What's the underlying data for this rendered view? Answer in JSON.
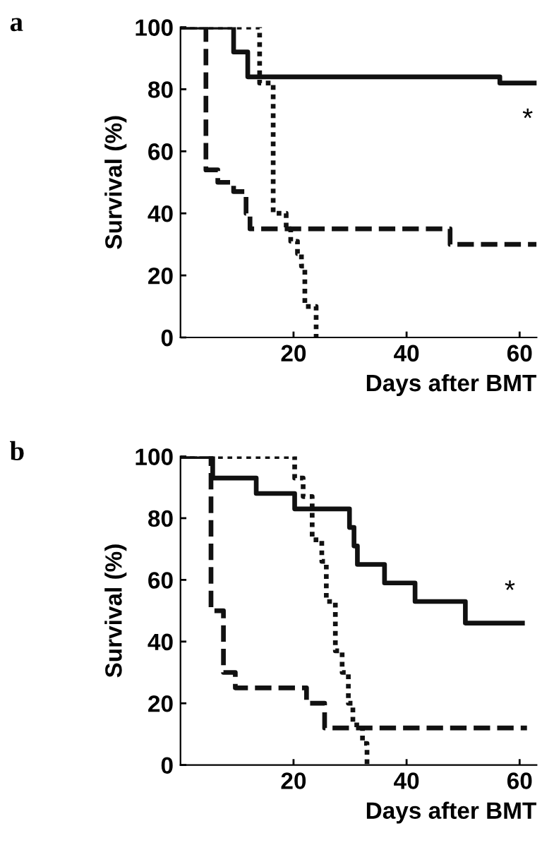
{
  "chart_data": [
    {
      "type": "step",
      "title": "a",
      "xlabel": "Days after BMT",
      "ylabel": "Survival (%)",
      "xlim": [
        0,
        63
      ],
      "xticks": [
        20,
        40,
        60
      ],
      "ylim": [
        0,
        100
      ],
      "yticks": [
        0,
        20,
        40,
        60,
        80,
        100
      ],
      "grid": false,
      "legend": false,
      "series": [
        {
          "color": "#111111",
          "line_style": "solid",
          "x": [
            0,
            9.4,
            11.9,
            56.5,
            63
          ],
          "values": [
            100,
            92,
            84,
            82,
            82
          ]
        },
        {
          "color": "#111111",
          "line_style": "dashed",
          "x": [
            0,
            4.5,
            6.6,
            9.4,
            11.6,
            12.3,
            47.7,
            63
          ],
          "values": [
            100,
            54,
            50,
            47,
            40,
            35,
            30,
            30
          ]
        },
        {
          "color": "#111111",
          "line_style": "dotted",
          "x": [
            0,
            14,
            16.4,
            18.7,
            19.5,
            20.7,
            21.4,
            22,
            24
          ],
          "values": [
            100,
            82,
            40,
            35,
            31,
            27,
            23,
            10,
            0
          ]
        }
      ],
      "annotations": [
        "*"
      ]
    },
    {
      "type": "step",
      "title": "b",
      "xlabel": "Days after BMT",
      "ylabel": "Survival (%)",
      "xlim": [
        0,
        63
      ],
      "xticks": [
        20,
        40,
        60
      ],
      "ylim": [
        0,
        100
      ],
      "yticks": [
        0,
        20,
        40,
        60,
        80,
        100
      ],
      "grid": false,
      "legend": false,
      "series": [
        {
          "color": "#111111",
          "line_style": "solid",
          "x": [
            0,
            5.7,
            13.4,
            20.2,
            29.9,
            30.7,
            31.3,
            36.1,
            41.5,
            50.4,
            60.5
          ],
          "values": [
            100,
            93,
            88,
            83,
            77,
            71,
            65,
            59,
            53,
            46,
            46
          ]
        },
        {
          "color": "#111111",
          "line_style": "dashed",
          "x": [
            0,
            5.4,
            7.6,
            9.7,
            22.3,
            25.5,
            61.3
          ],
          "values": [
            100,
            50,
            30,
            25,
            20,
            12,
            12
          ]
        },
        {
          "color": "#111111",
          "line_style": "dotted",
          "x": [
            0,
            20.2,
            21.7,
            23.3,
            25,
            25.8,
            27.4,
            28.6,
            29.7,
            30.5,
            32.2,
            33
          ],
          "values": [
            100,
            93,
            87,
            73,
            66,
            53,
            37,
            30,
            20,
            13,
            7,
            0
          ]
        }
      ],
      "annotations": [
        "*"
      ]
    }
  ]
}
